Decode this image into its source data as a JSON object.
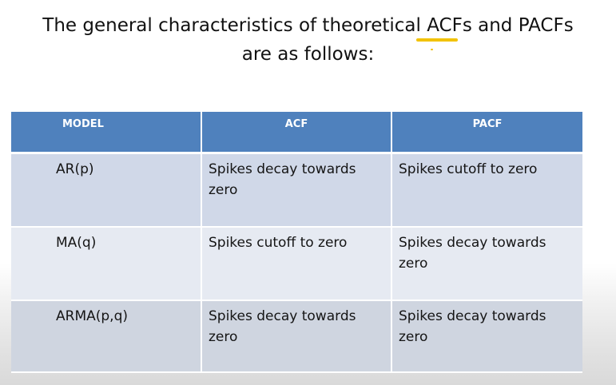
{
  "slide": {
    "title_line1": "The general characteristics of theoretical ACFs and PACFs",
    "title_line2": "are as follows:",
    "highlight_color": "#f2c200"
  },
  "table": {
    "header_color": "#4f81bd",
    "headers": [
      "MODEL",
      "ACF",
      "PACF"
    ],
    "rows": [
      {
        "model": "AR(p)",
        "acf": "Spikes decay towards zero",
        "pacf": "Spikes cutoff to zero"
      },
      {
        "model": "MA(q)",
        "acf": "Spikes cutoff to zero",
        "pacf": "Spikes decay towards zero"
      },
      {
        "model": "ARMA(p,q)",
        "acf": "Spikes decay towards zero",
        "pacf": "Spikes decay towards zero"
      }
    ]
  }
}
